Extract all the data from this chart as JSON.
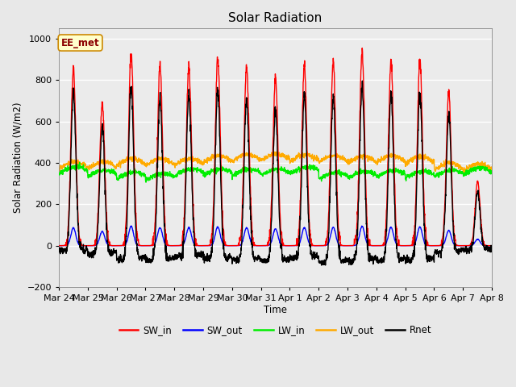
{
  "title": "Solar Radiation",
  "ylabel": "Solar Radiation (W/m2)",
  "xlabel": "Time",
  "ylim": [
    -200,
    1050
  ],
  "fig_bg_color": "#e8e8e8",
  "plot_bg_color": "#ebebeb",
  "legend_label": "EE_met",
  "x_tick_labels": [
    "Mar 24",
    "Mar 25",
    "Mar 26",
    "Mar 27",
    "Mar 28",
    "Mar 29",
    "Mar 30",
    "Mar 31",
    "Apr 1",
    "Apr 2",
    "Apr 3",
    "Apr 4",
    "Apr 5",
    "Apr 6",
    "Apr 7",
    "Apr 8"
  ],
  "series": {
    "SW_in": {
      "color": "#ff0000",
      "lw": 1.0
    },
    "SW_out": {
      "color": "#0000ff",
      "lw": 1.0
    },
    "LW_in": {
      "color": "#00ee00",
      "lw": 1.0
    },
    "LW_out": {
      "color": "#ffaa00",
      "lw": 1.0
    },
    "Rnet": {
      "color": "#000000",
      "lw": 1.0
    }
  },
  "num_days": 15,
  "pts_per_day": 144,
  "sw_in_peaks": [
    860,
    690,
    940,
    870,
    870,
    910,
    870,
    820,
    870,
    890,
    940,
    890,
    900,
    740,
    310
  ],
  "lw_in_bases": [
    355,
    340,
    330,
    325,
    345,
    345,
    345,
    345,
    355,
    330,
    335,
    340,
    335,
    340,
    350
  ],
  "lw_out_bases": [
    375,
    375,
    390,
    390,
    390,
    405,
    410,
    415,
    410,
    405,
    400,
    405,
    400,
    370,
    365
  ],
  "night_rnet": -60,
  "lw_amp": 25
}
